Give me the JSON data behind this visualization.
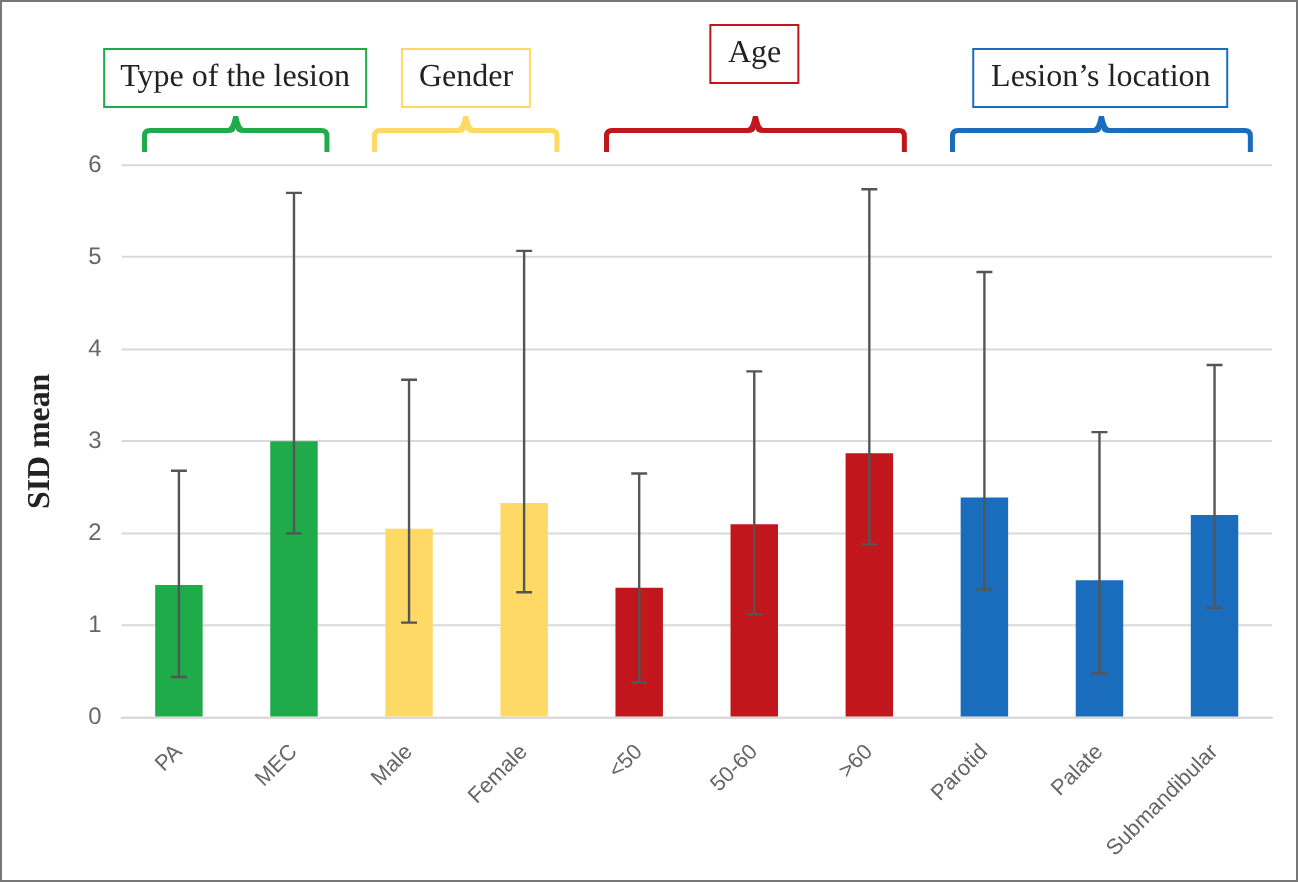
{
  "chart_data": {
    "type": "bar",
    "ylabel": "SID mean",
    "categories": [
      "PA",
      "MEC",
      "Male",
      "Female",
      "<50",
      "50-60",
      ">60",
      "Parotid",
      "Palate",
      "Submandibular"
    ],
    "values": [
      1.44,
      3.0,
      2.05,
      2.33,
      1.41,
      2.1,
      2.87,
      2.39,
      1.49,
      2.2
    ],
    "colors": [
      "#1fab4a",
      "#1fab4a",
      "#ffd966",
      "#ffd966",
      "#c0161c",
      "#c0161c",
      "#c0161c",
      "#1a6cbd",
      "#1a6cbd",
      "#1a6cbd"
    ],
    "errors": [
      [
        0.44,
        2.68
      ],
      [
        2.0,
        5.7
      ],
      [
        1.03,
        3.67
      ],
      [
        1.36,
        5.07
      ],
      [
        0.38,
        2.65
      ],
      [
        1.12,
        3.76
      ],
      [
        1.88,
        5.74
      ],
      [
        1.39,
        4.84
      ],
      [
        0.48,
        3.1
      ],
      [
        1.19,
        3.83
      ]
    ],
    "ylim": [
      0,
      6
    ],
    "yticks": [
      0,
      1,
      2,
      3,
      4,
      5,
      6
    ],
    "grid": "y",
    "legend": false,
    "annotations": [
      "Type of the lesion",
      "Gender",
      "Age",
      "Lesion’s location"
    ]
  }
}
